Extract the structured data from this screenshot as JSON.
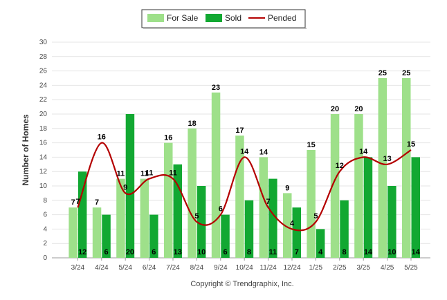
{
  "chart_data": {
    "type": "bar",
    "ylabel": "Number of Homes",
    "ylim": [
      0,
      30
    ],
    "ytick_step": 2,
    "grid": true,
    "legend_position": "top-center",
    "categories": [
      "3/24",
      "4/24",
      "5/24",
      "6/24",
      "7/24",
      "8/24",
      "9/24",
      "10/24",
      "11/24",
      "12/24",
      "1/25",
      "2/25",
      "3/25",
      "4/25",
      "5/25"
    ],
    "series": [
      {
        "name": "For Sale",
        "kind": "bar",
        "color": "#9ee08a",
        "values": [
          7,
          7,
          11,
          11,
          16,
          18,
          23,
          17,
          14,
          9,
          15,
          20,
          20,
          25,
          25
        ]
      },
      {
        "name": "Sold",
        "kind": "bar",
        "color": "#12a832",
        "values": [
          12,
          6,
          20,
          6,
          13,
          10,
          6,
          8,
          11,
          7,
          4,
          8,
          14,
          10,
          14
        ]
      },
      {
        "name": "Pended",
        "kind": "line",
        "color": "#b40000",
        "values": [
          7,
          16,
          9,
          11,
          11,
          5,
          6,
          14,
          7,
          4,
          5,
          12,
          14,
          13,
          15
        ]
      }
    ],
    "footer": "Copyright © Trendgraphix, Inc."
  }
}
